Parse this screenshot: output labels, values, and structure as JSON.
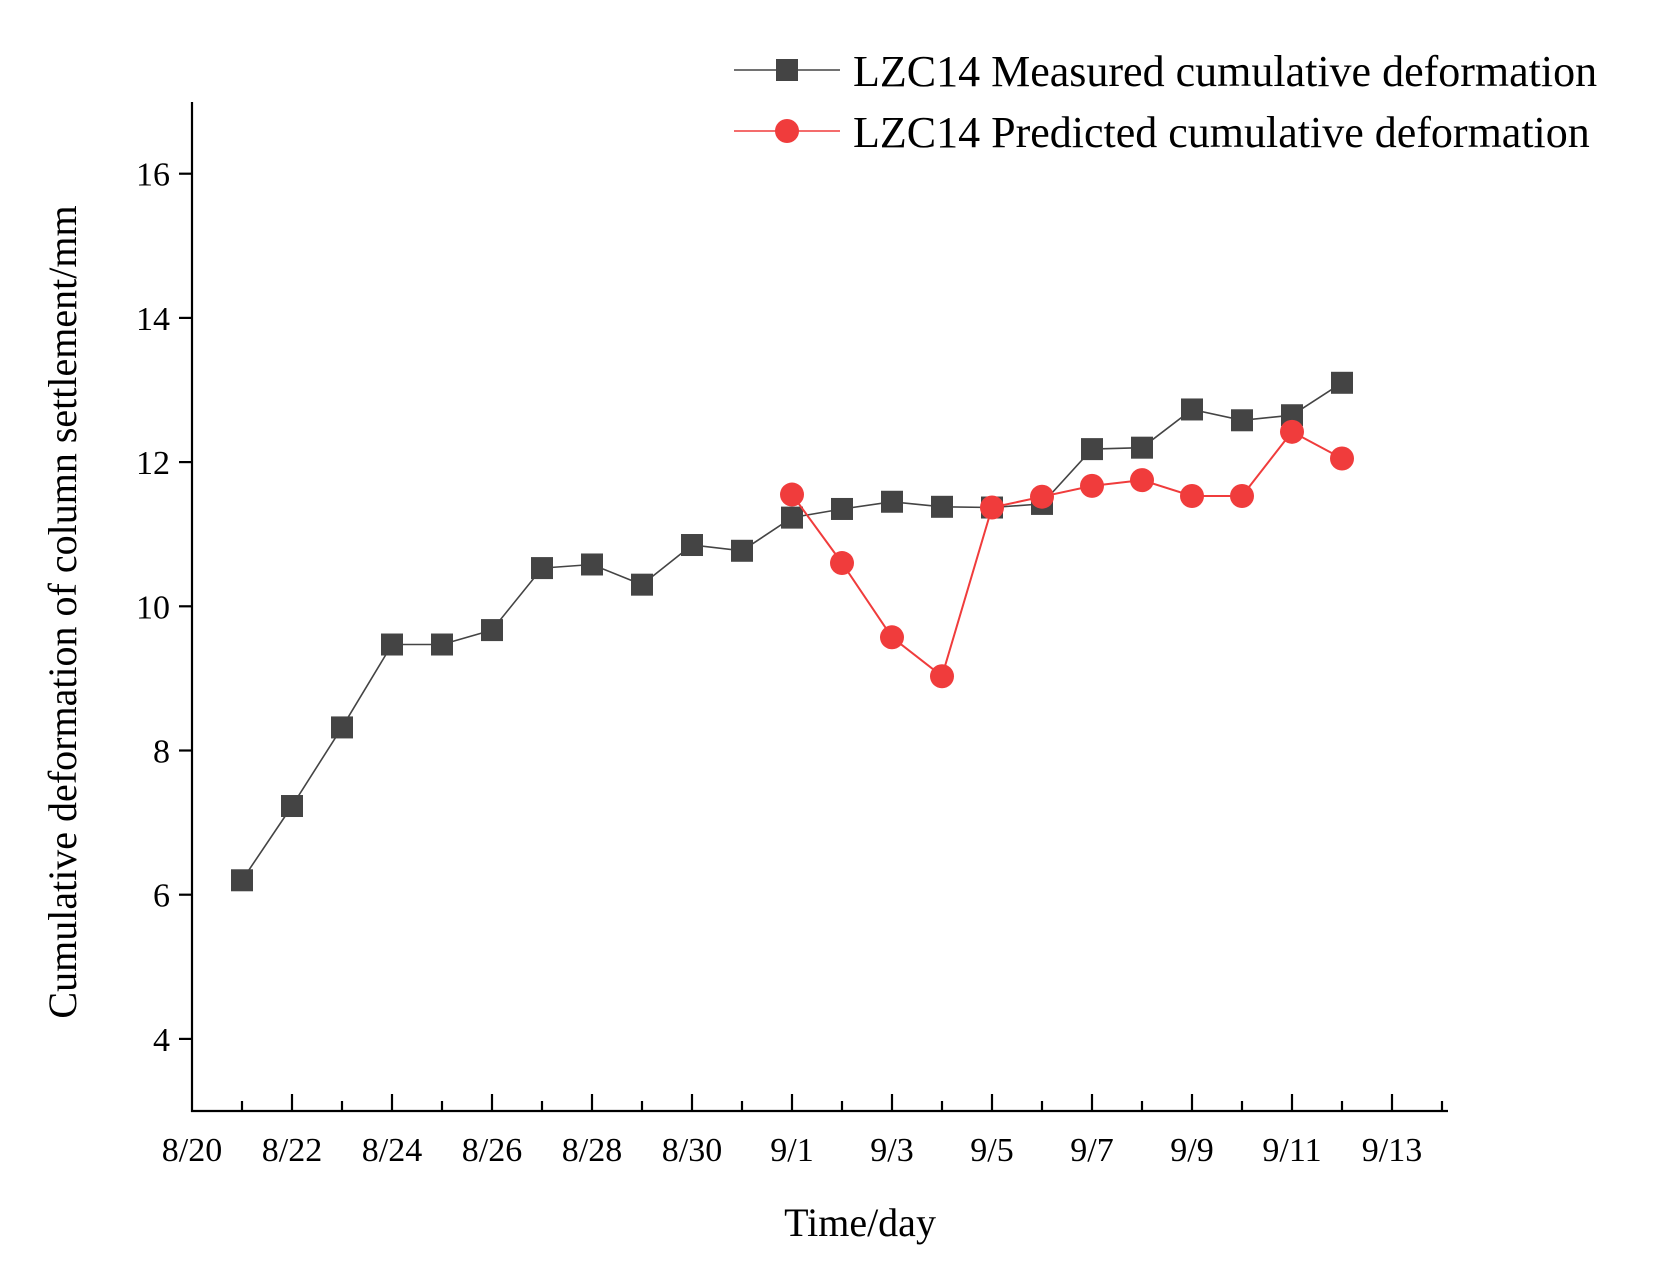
{
  "chart_data": {
    "type": "line",
    "title": "",
    "xlabel": "Time/day",
    "ylabel": "Cumulative deformation of column settlement/mm",
    "ylim": [
      3,
      17
    ],
    "yticks": [
      4,
      6,
      8,
      10,
      12,
      14,
      16
    ],
    "xlim": [
      0,
      25
    ],
    "xticks": [
      {
        "x": 0,
        "label": "8/20"
      },
      {
        "x": 2,
        "label": "8/22"
      },
      {
        "x": 4,
        "label": "8/24"
      },
      {
        "x": 6,
        "label": "8/26"
      },
      {
        "x": 8,
        "label": "8/28"
      },
      {
        "x": 10,
        "label": "8/30"
      },
      {
        "x": 12,
        "label": "9/1"
      },
      {
        "x": 14,
        "label": "9/3"
      },
      {
        "x": 16,
        "label": "9/5"
      },
      {
        "x": 18,
        "label": "9/7"
      },
      {
        "x": 20,
        "label": "9/9"
      },
      {
        "x": 22,
        "label": "9/11"
      },
      {
        "x": 24,
        "label": "9/13"
      }
    ],
    "legend_position": "top-right",
    "series": [
      {
        "name": "LZC14 Measured cumulative deformation",
        "color": "#444444",
        "marker": "square",
        "x": [
          1,
          2,
          3,
          4,
          5,
          6,
          7,
          8,
          9,
          10,
          11,
          12,
          13,
          14,
          15,
          16,
          17,
          18,
          19,
          20,
          21,
          22,
          23
        ],
        "values": [
          6.2,
          7.23,
          8.32,
          9.47,
          9.47,
          9.67,
          10.53,
          10.58,
          10.3,
          10.85,
          10.77,
          11.23,
          11.35,
          11.45,
          11.38,
          11.37,
          11.42,
          12.18,
          12.2,
          12.73,
          12.58,
          12.65,
          13.1
        ]
      },
      {
        "name": "LZC14 Predicted cumulative deformation",
        "color": "#f03c3c",
        "marker": "circle",
        "x": [
          12,
          13,
          14,
          15,
          16,
          17,
          18,
          19,
          20,
          21,
          22,
          23
        ],
        "values": [
          11.55,
          10.6,
          9.57,
          9.03,
          11.37,
          11.52,
          11.67,
          11.75,
          11.53,
          11.53,
          12.42,
          12.05
        ]
      }
    ]
  }
}
